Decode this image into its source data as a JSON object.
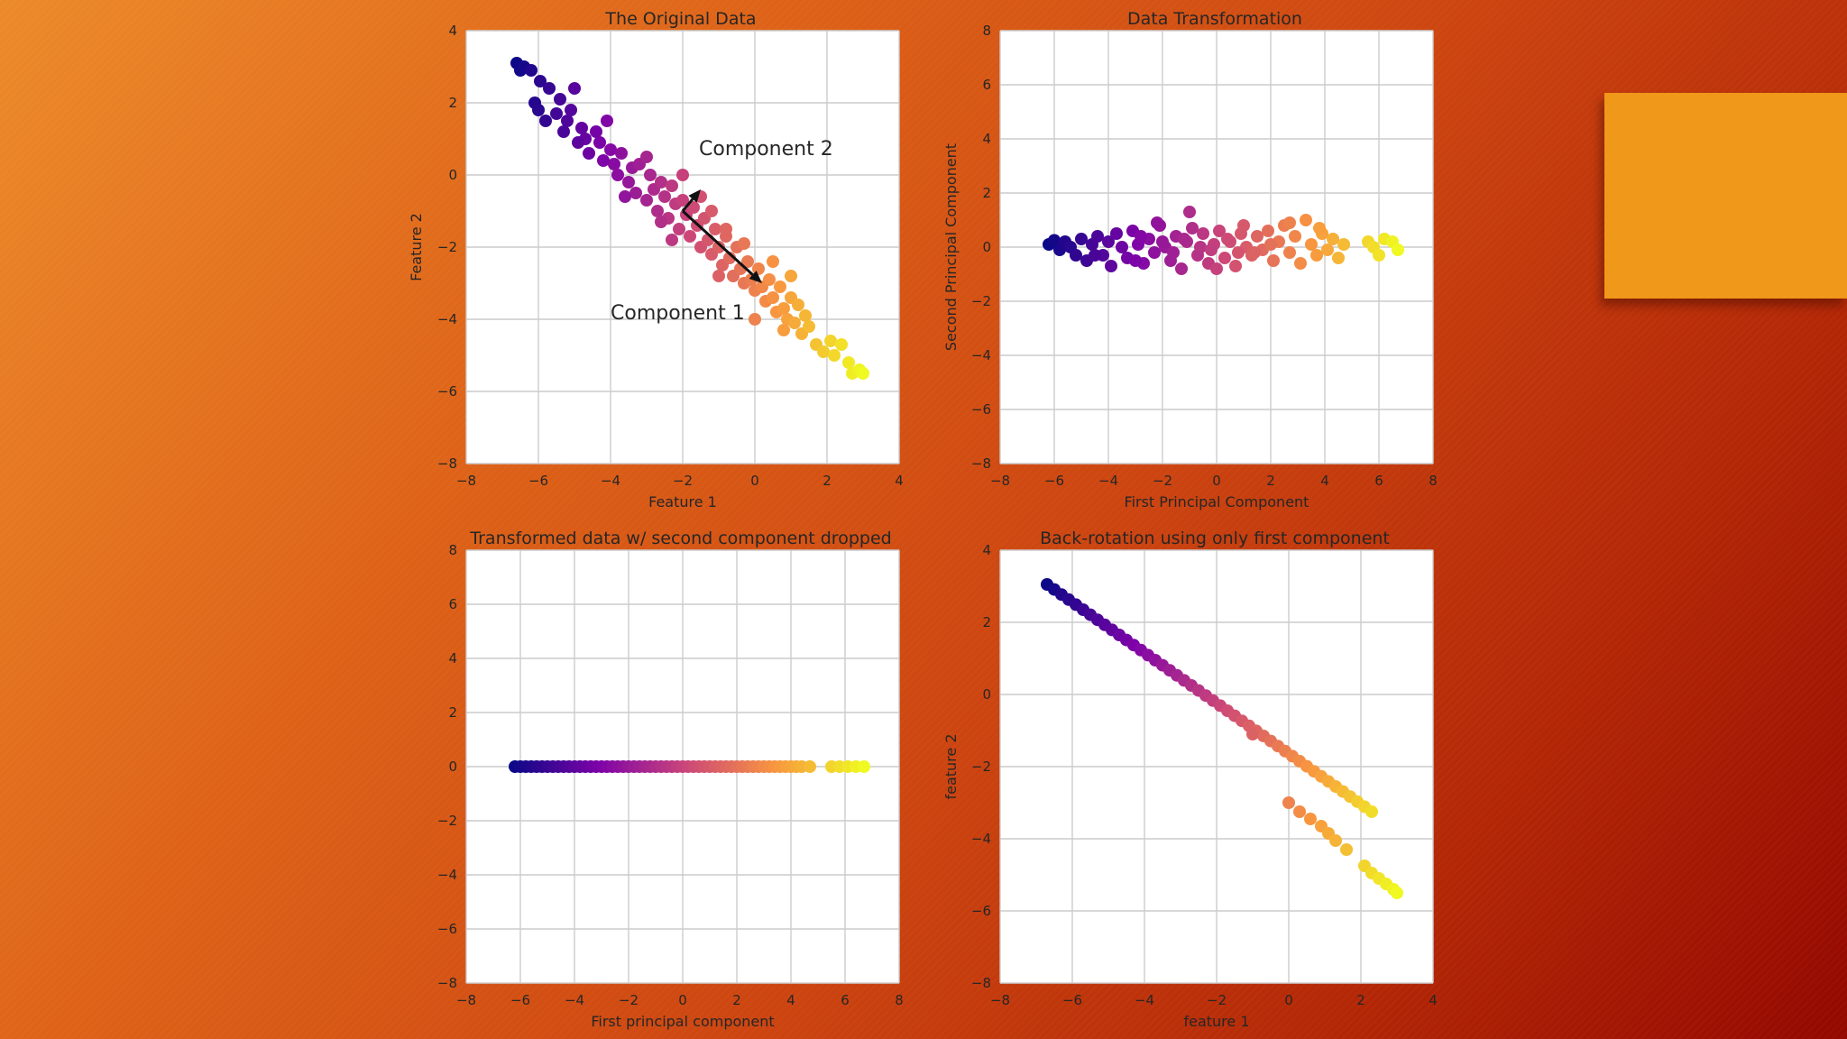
{
  "colors": {
    "background_start": "#ec8a2a",
    "background_end": "#930800",
    "accent_box": "#f0981a",
    "plot_background": "#ffffff",
    "grid": "#cccccc",
    "text": "#262626",
    "colormap": "plasma"
  },
  "chart_data": [
    {
      "id": "original",
      "type": "scatter",
      "title": "The Original Data",
      "xlabel": "Feature 1",
      "ylabel": "Feature 2",
      "xlim": [
        -8,
        4
      ],
      "ylim": [
        -8,
        4
      ],
      "xticks": [
        "−8",
        "−6",
        "−4",
        "−2",
        "0",
        "2",
        "4"
      ],
      "yticks": [
        "4",
        "2",
        "0",
        "−2",
        "−4",
        "−6",
        "−8"
      ],
      "grid": true,
      "colormap": "plasma",
      "points": [
        [
          -6.6,
          3.1
        ],
        [
          -6.5,
          2.9
        ],
        [
          -6.4,
          3.0
        ],
        [
          -6.2,
          2.9
        ],
        [
          -6.1,
          2.0
        ],
        [
          -6.0,
          1.8
        ],
        [
          -5.95,
          2.6
        ],
        [
          -5.7,
          2.4
        ],
        [
          -5.5,
          1.7
        ],
        [
          -5.4,
          2.1
        ],
        [
          -5.2,
          1.5
        ],
        [
          -5.0,
          2.4
        ],
        [
          -5.1,
          1.8
        ],
        [
          -4.8,
          1.3
        ],
        [
          -4.7,
          1.0
        ],
        [
          -4.6,
          0.6
        ],
        [
          -4.4,
          1.2
        ],
        [
          -4.3,
          0.9
        ],
        [
          -4.1,
          1.5
        ],
        [
          -4.0,
          0.7
        ],
        [
          -3.9,
          0.3
        ],
        [
          -3.8,
          0.0
        ],
        [
          -3.7,
          0.6
        ],
        [
          -3.5,
          -0.2
        ],
        [
          -3.4,
          0.2
        ],
        [
          -3.3,
          -0.5
        ],
        [
          -3.2,
          0.3
        ],
        [
          -3.0,
          -0.7
        ],
        [
          -2.9,
          0.0
        ],
        [
          -2.8,
          -0.4
        ],
        [
          -2.7,
          -1.0
        ],
        [
          -2.6,
          -0.2
        ],
        [
          -2.5,
          -0.6
        ],
        [
          -2.4,
          -1.2
        ],
        [
          -2.3,
          -0.3
        ],
        [
          -2.2,
          -0.8
        ],
        [
          -2.1,
          -1.5
        ],
        [
          -2.0,
          -0.7
        ],
        [
          -1.9,
          -1.1
        ],
        [
          -1.8,
          -1.7
        ],
        [
          -1.7,
          -0.9
        ],
        [
          -1.6,
          -1.4
        ],
        [
          -1.5,
          -2.0
        ],
        [
          -1.4,
          -1.2
        ],
        [
          -1.3,
          -1.8
        ],
        [
          -1.2,
          -2.2
        ],
        [
          -1.1,
          -1.5
        ],
        [
          -1.0,
          -2.0
        ],
        [
          -0.9,
          -2.5
        ],
        [
          -0.8,
          -1.7
        ],
        [
          -0.7,
          -2.3
        ],
        [
          -0.6,
          -2.8
        ],
        [
          -0.5,
          -2.0
        ],
        [
          -0.4,
          -2.6
        ],
        [
          -0.3,
          -3.0
        ],
        [
          -0.2,
          -2.4
        ],
        [
          -0.1,
          -2.9
        ],
        [
          0.0,
          -3.2
        ],
        [
          0.1,
          -2.6
        ],
        [
          0.2,
          -3.1
        ],
        [
          0.3,
          -3.5
        ],
        [
          0.4,
          -2.9
        ],
        [
          0.5,
          -3.4
        ],
        [
          0.6,
          -3.8
        ],
        [
          0.7,
          -3.1
        ],
        [
          0.8,
          -3.7
        ],
        [
          0.9,
          -4.0
        ],
        [
          1.0,
          -3.4
        ],
        [
          1.1,
          -4.1
        ],
        [
          1.2,
          -3.6
        ],
        [
          1.3,
          -4.4
        ],
        [
          1.4,
          -3.9
        ],
        [
          1.5,
          -4.2
        ],
        [
          0.0,
          -4.0
        ],
        [
          0.8,
          -4.3
        ],
        [
          1.7,
          -4.7
        ],
        [
          1.9,
          -4.9
        ],
        [
          2.1,
          -4.6
        ],
        [
          2.2,
          -5.0
        ],
        [
          2.4,
          -4.7
        ],
        [
          2.6,
          -5.2
        ],
        [
          2.7,
          -5.5
        ],
        [
          2.9,
          -5.4
        ],
        [
          3.0,
          -5.5
        ],
        [
          -2.0,
          0.0
        ],
        [
          -1.5,
          -0.6
        ],
        [
          -3.0,
          0.5
        ],
        [
          -2.6,
          -1.3
        ],
        [
          -1.2,
          -1.0
        ],
        [
          -0.8,
          -1.5
        ],
        [
          -3.6,
          -0.6
        ],
        [
          -4.2,
          0.4
        ],
        [
          -2.3,
          -1.8
        ],
        [
          -0.3,
          -1.9
        ],
        [
          -1.0,
          -2.8
        ],
        [
          -5.8,
          1.5
        ],
        [
          -5.3,
          1.2
        ],
        [
          -4.9,
          0.9
        ],
        [
          0.5,
          -2.4
        ],
        [
          1.0,
          -2.8
        ]
      ],
      "annotations": [
        {
          "text": "Component 2",
          "at": [
            -1.5,
            -0.4
          ],
          "from": [
            -2.0,
            -1.0
          ]
        },
        {
          "text": "Component 1",
          "at": [
            0.2,
            -3.0
          ],
          "from": [
            -2.0,
            -1.0
          ]
        }
      ],
      "annotation_text_positions": [
        [
          -1.55,
          0.55
        ],
        [
          -4.0,
          -4.0
        ]
      ]
    },
    {
      "id": "transformed",
      "type": "scatter",
      "title": "Data Transformation",
      "xlabel": "First Principal Component",
      "ylabel": "Second Principal Component",
      "xlim": [
        -8,
        8
      ],
      "ylim": [
        -8,
        8
      ],
      "xticks": [
        "−8",
        "−6",
        "−4",
        "−2",
        "0",
        "2",
        "4",
        "6",
        "8"
      ],
      "yticks": [
        "8",
        "6",
        "4",
        "2",
        "0",
        "−2",
        "−4",
        "−6",
        "−8"
      ],
      "grid": true,
      "colormap": "plasma",
      "points": [
        [
          -6.2,
          0.1
        ],
        [
          -6.0,
          0.25
        ],
        [
          -5.8,
          -0.1
        ],
        [
          -5.6,
          0.2
        ],
        [
          -5.4,
          0.0
        ],
        [
          -5.2,
          -0.3
        ],
        [
          -5.0,
          0.3
        ],
        [
          -4.8,
          -0.5
        ],
        [
          -4.6,
          0.1
        ],
        [
          -4.4,
          0.4
        ],
        [
          -4.2,
          -0.3
        ],
        [
          -4.0,
          0.2
        ],
        [
          -3.9,
          -0.7
        ],
        [
          -3.7,
          0.5
        ],
        [
          -3.5,
          0.0
        ],
        [
          -3.3,
          -0.4
        ],
        [
          -3.1,
          0.6
        ],
        [
          -2.9,
          0.1
        ],
        [
          -2.7,
          -0.6
        ],
        [
          -2.5,
          0.3
        ],
        [
          -2.3,
          -0.2
        ],
        [
          -2.1,
          0.8
        ],
        [
          -1.9,
          0.0
        ],
        [
          -1.7,
          -0.5
        ],
        [
          -1.5,
          0.4
        ],
        [
          -1.3,
          -0.8
        ],
        [
          -1.1,
          0.2
        ],
        [
          -0.9,
          0.7
        ],
        [
          -0.7,
          -0.3
        ],
        [
          -0.5,
          0.5
        ],
        [
          -0.3,
          -0.6
        ],
        [
          -0.1,
          0.1
        ],
        [
          0.1,
          0.6
        ],
        [
          0.3,
          -0.4
        ],
        [
          0.5,
          0.2
        ],
        [
          0.7,
          -0.7
        ],
        [
          0.9,
          0.5
        ],
        [
          1.1,
          0.0
        ],
        [
          1.3,
          -0.3
        ],
        [
          1.5,
          0.4
        ],
        [
          1.7,
          -0.1
        ],
        [
          1.9,
          0.6
        ],
        [
          2.1,
          -0.5
        ],
        [
          2.3,
          0.2
        ],
        [
          2.5,
          0.8
        ],
        [
          2.7,
          -0.2
        ],
        [
          2.9,
          0.4
        ],
        [
          3.1,
          -0.6
        ],
        [
          3.3,
          1.0
        ],
        [
          3.5,
          0.1
        ],
        [
          3.7,
          -0.3
        ],
        [
          3.9,
          0.5
        ],
        [
          4.1,
          -0.1
        ],
        [
          4.3,
          0.3
        ],
        [
          4.5,
          -0.4
        ],
        [
          4.7,
          0.1
        ],
        [
          5.6,
          0.2
        ],
        [
          5.8,
          0.0
        ],
        [
          6.0,
          -0.3
        ],
        [
          6.2,
          0.3
        ],
        [
          6.5,
          0.2
        ],
        [
          6.7,
          -0.1
        ],
        [
          -1.0,
          1.3
        ],
        [
          -2.2,
          0.9
        ],
        [
          0.0,
          -0.8
        ],
        [
          1.0,
          0.8
        ],
        [
          -3.0,
          -0.5
        ],
        [
          -4.5,
          -0.3
        ],
        [
          2.7,
          0.9
        ],
        [
          3.8,
          0.7
        ],
        [
          -2.0,
          0.2
        ],
        [
          -1.6,
          -0.2
        ],
        [
          -0.6,
          0.0
        ],
        [
          0.4,
          0.3
        ],
        [
          1.4,
          -0.2
        ],
        [
          -1.2,
          0.3
        ],
        [
          -0.2,
          -0.1
        ],
        [
          0.8,
          -0.2
        ],
        [
          -2.8,
          0.4
        ],
        [
          2.0,
          0.1
        ]
      ]
    },
    {
      "id": "dropped",
      "type": "scatter",
      "title": "Transformed data w/ second component dropped",
      "xlabel": "First principal component",
      "ylabel": "",
      "xlim": [
        -8,
        8
      ],
      "ylim": [
        -8,
        8
      ],
      "xticks": [
        "−8",
        "−6",
        "−4",
        "−2",
        "0",
        "2",
        "4",
        "6",
        "8"
      ],
      "yticks": [
        "8",
        "6",
        "4",
        "2",
        "0",
        "−2",
        "−4",
        "−6",
        "−8"
      ],
      "grid": true,
      "colormap": "plasma",
      "points": [
        [
          -6.2,
          0
        ],
        [
          -6.0,
          0
        ],
        [
          -5.8,
          0
        ],
        [
          -5.6,
          0
        ],
        [
          -5.4,
          0
        ],
        [
          -5.2,
          0
        ],
        [
          -5.0,
          0
        ],
        [
          -4.8,
          0
        ],
        [
          -4.6,
          0
        ],
        [
          -4.4,
          0
        ],
        [
          -4.2,
          0
        ],
        [
          -4.0,
          0
        ],
        [
          -3.8,
          0
        ],
        [
          -3.6,
          0
        ],
        [
          -3.4,
          0
        ],
        [
          -3.2,
          0
        ],
        [
          -3.0,
          0
        ],
        [
          -2.8,
          0
        ],
        [
          -2.6,
          0
        ],
        [
          -2.4,
          0
        ],
        [
          -2.2,
          0
        ],
        [
          -2.0,
          0
        ],
        [
          -1.8,
          0
        ],
        [
          -1.6,
          0
        ],
        [
          -1.4,
          0
        ],
        [
          -1.2,
          0
        ],
        [
          -1.0,
          0
        ],
        [
          -0.8,
          0
        ],
        [
          -0.6,
          0
        ],
        [
          -0.4,
          0
        ],
        [
          -0.2,
          0
        ],
        [
          0.0,
          0
        ],
        [
          0.2,
          0
        ],
        [
          0.4,
          0
        ],
        [
          0.6,
          0
        ],
        [
          0.8,
          0
        ],
        [
          1.0,
          0
        ],
        [
          1.2,
          0
        ],
        [
          1.4,
          0
        ],
        [
          1.6,
          0
        ],
        [
          1.8,
          0
        ],
        [
          2.0,
          0
        ],
        [
          2.2,
          0
        ],
        [
          2.4,
          0
        ],
        [
          2.6,
          0
        ],
        [
          2.8,
          0
        ],
        [
          3.0,
          0
        ],
        [
          3.2,
          0
        ],
        [
          3.4,
          0
        ],
        [
          3.6,
          0
        ],
        [
          3.8,
          0
        ],
        [
          4.0,
          0
        ],
        [
          4.2,
          0
        ],
        [
          4.4,
          0
        ],
        [
          4.7,
          0
        ],
        [
          5.5,
          0
        ],
        [
          5.8,
          0
        ],
        [
          6.1,
          0
        ],
        [
          6.4,
          0
        ],
        [
          6.7,
          0
        ]
      ]
    },
    {
      "id": "backrotation",
      "type": "scatter",
      "title": "Back-rotation using only first component",
      "xlabel": "feature 1",
      "ylabel": "feature 2",
      "xlim": [
        -8,
        4
      ],
      "ylim": [
        -8,
        4
      ],
      "xticks": [
        "−8",
        "−6",
        "−4",
        "−2",
        "0",
        "2",
        "4"
      ],
      "yticks": [
        "4",
        "2",
        "0",
        "−2",
        "−4",
        "−6",
        "−8"
      ],
      "grid": true,
      "colormap": "plasma",
      "points": [
        [
          -6.7,
          3.05
        ],
        [
          -6.5,
          2.91
        ],
        [
          -6.3,
          2.77
        ],
        [
          -6.1,
          2.63
        ],
        [
          -5.9,
          2.49
        ],
        [
          -5.7,
          2.35
        ],
        [
          -5.5,
          2.21
        ],
        [
          -5.3,
          2.07
        ],
        [
          -5.1,
          1.93
        ],
        [
          -4.9,
          1.79
        ],
        [
          -4.7,
          1.65
        ],
        [
          -4.5,
          1.51
        ],
        [
          -4.3,
          1.37
        ],
        [
          -4.1,
          1.23
        ],
        [
          -3.9,
          1.09
        ],
        [
          -3.7,
          0.95
        ],
        [
          -3.5,
          0.81
        ],
        [
          -3.3,
          0.67
        ],
        [
          -3.1,
          0.53
        ],
        [
          -2.9,
          0.39
        ],
        [
          -2.7,
          0.25
        ],
        [
          -2.5,
          0.11
        ],
        [
          -2.3,
          -0.03
        ],
        [
          -2.1,
          -0.17
        ],
        [
          -1.9,
          -0.31
        ],
        [
          -1.7,
          -0.45
        ],
        [
          -1.5,
          -0.59
        ],
        [
          -1.3,
          -0.73
        ],
        [
          -1.1,
          -0.87
        ],
        [
          -0.9,
          -1.01
        ],
        [
          -0.7,
          -1.15
        ],
        [
          -0.5,
          -1.29
        ],
        [
          -0.3,
          -1.43
        ],
        [
          -0.1,
          -1.57
        ],
        [
          0.1,
          -1.71
        ],
        [
          0.3,
          -1.85
        ],
        [
          0.5,
          -1.99
        ],
        [
          0.7,
          -2.13
        ],
        [
          0.9,
          -2.27
        ],
        [
          1.1,
          -2.41
        ],
        [
          1.3,
          -2.55
        ],
        [
          1.5,
          -2.69
        ],
        [
          1.7,
          -2.83
        ],
        [
          1.9,
          -2.97
        ],
        [
          2.1,
          -3.11
        ],
        [
          2.3,
          -3.25
        ],
        [
          0.0,
          -3.0
        ],
        [
          0.3,
          -3.25
        ],
        [
          0.6,
          -3.45
        ],
        [
          0.9,
          -3.65
        ],
        [
          1.1,
          -3.85
        ],
        [
          1.3,
          -4.05
        ],
        [
          1.6,
          -4.3
        ],
        [
          2.1,
          -4.75
        ],
        [
          2.3,
          -4.95
        ],
        [
          2.5,
          -5.1
        ],
        [
          2.7,
          -5.25
        ],
        [
          2.9,
          -5.4
        ],
        [
          3.0,
          -5.5
        ],
        [
          -1.0,
          -1.1
        ]
      ]
    }
  ]
}
